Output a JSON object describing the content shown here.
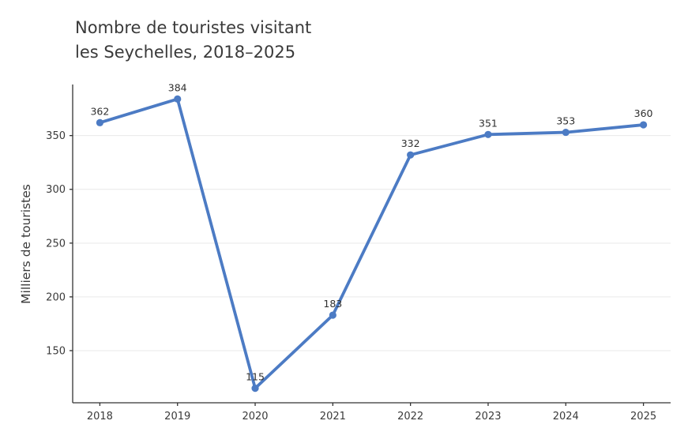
{
  "figure": {
    "title_line1": "Nombre de touristes visitant",
    "title_line2": "les Seychelles, 2018–2025",
    "ylabel": "Milliers de touristes"
  },
  "chart_data": {
    "type": "line",
    "title": "Nombre de touristes visitant les Seychelles, 2018–2025",
    "xlabel": "",
    "ylabel": "Milliers de touristes",
    "categories": [
      "2018",
      "2019",
      "2020",
      "2021",
      "2022",
      "2023",
      "2024",
      "2025"
    ],
    "x": [
      2018,
      2019,
      2020,
      2021,
      2022,
      2023,
      2024,
      2025
    ],
    "values": [
      362,
      384,
      115,
      183,
      332,
      351,
      353,
      360
    ],
    "data_labels": [
      362,
      384,
      115,
      183,
      332,
      351,
      353,
      360
    ],
    "yticks": [
      150,
      200,
      250,
      300,
      350
    ],
    "ylim": [
      101.5,
      397.5
    ],
    "xlim": [
      2017.65,
      2025.35
    ],
    "grid": "horizontal",
    "legend": "none",
    "line_color": "#4C7BC4",
    "marker": "circle"
  },
  "style": {
    "background": "#ffffff",
    "text_color": "#3a3a3a",
    "grid_color": "#e9e9e9",
    "spine_color": "#333333"
  }
}
